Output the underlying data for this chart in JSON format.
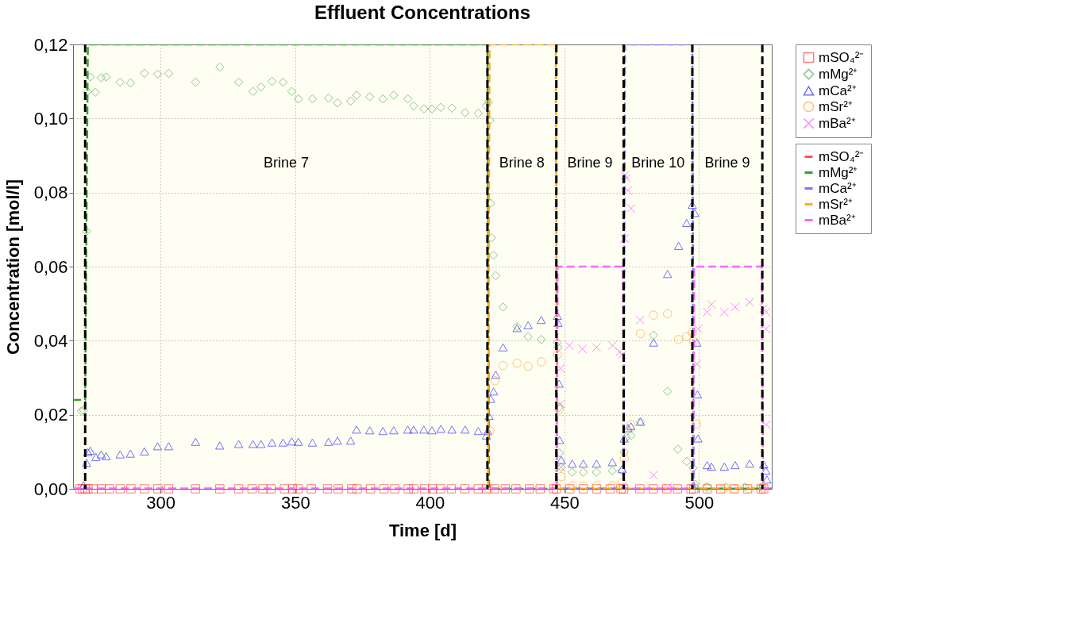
{
  "chart_data": {
    "type": "scatter",
    "title": "Effluent Concentrations",
    "xlabel": "Time [d]",
    "ylabel": "Concentration [mol/l]",
    "xlim": [
      267.5,
      527
    ],
    "xticks": [
      300,
      350,
      400,
      450,
      500
    ],
    "ylim": [
      0,
      0.12
    ],
    "yticks": [
      {
        "value": 0,
        "label": "0,00"
      },
      {
        "value": 0.02,
        "label": "0,02"
      },
      {
        "value": 0.04,
        "label": "0,04"
      },
      {
        "value": 0.06,
        "label": "0,06"
      },
      {
        "value": 0.08,
        "label": "0,08"
      },
      {
        "value": 0.1,
        "label": "0,10"
      },
      {
        "value": 0.12,
        "label": "0,12"
      }
    ],
    "grid": true,
    "legend": "right",
    "series": [
      {
        "name": "mSO₄²⁻",
        "marker": "square",
        "color": "#ff4444",
        "x": [
          270,
          271,
          272,
          273,
          275,
          278,
          281,
          285,
          289,
          294,
          299,
          303,
          313,
          322,
          329,
          334,
          338,
          341,
          346,
          349,
          351,
          356,
          362,
          366,
          371,
          373,
          378,
          383,
          387,
          392,
          394,
          398,
          401,
          404,
          408,
          413,
          418,
          421,
          424,
          428,
          432,
          437,
          441,
          446,
          447,
          452,
          457,
          462,
          467,
          471,
          472,
          478,
          483,
          488,
          492,
          497,
          498,
          503,
          508,
          513,
          518,
          523,
          524
        ],
        "values": [
          0,
          0,
          0,
          0,
          0,
          0,
          0,
          0,
          0,
          0,
          0,
          0,
          0,
          0,
          0,
          0,
          0,
          0,
          0,
          0,
          0,
          0,
          0,
          0,
          0,
          0,
          0,
          0,
          0,
          0,
          0,
          0,
          0,
          0,
          0,
          0,
          0,
          0,
          0,
          0,
          0,
          0,
          0,
          0,
          0,
          0,
          0,
          0,
          0,
          0,
          0,
          0,
          0,
          0,
          0,
          0,
          0,
          0,
          0,
          0,
          0,
          0,
          0
        ]
      },
      {
        "name": "mMg²⁺",
        "marker": "diamond",
        "color": "#5aaa5a",
        "x": [
          270.6,
          271.4,
          272.5,
          272.8,
          273.9,
          275.8,
          278,
          279.8,
          285,
          288.8,
          294,
          298.9,
          303,
          313,
          322,
          329,
          334.3,
          337.3,
          341.4,
          345.5,
          348.7,
          351.2,
          356.4,
          362.4,
          365.7,
          370.6,
          372.8,
          377.7,
          382.6,
          386.6,
          391.8,
          394,
          397.8,
          400.8,
          404.1,
          408.2,
          413.1,
          418,
          421,
          421.8,
          422.3,
          422.6,
          422.9,
          423.7,
          424.5,
          427.2,
          432.4,
          436.5,
          441.4,
          447.4,
          447.6,
          448,
          448.2,
          448.8,
          452.9,
          457,
          461.9,
          467.8,
          471.4,
          472.2,
          473,
          474.7,
          478.2,
          483.1,
          488.3,
          492.1,
          495.4,
          497.8,
          498.6,
          503,
          510,
          517,
          523
        ],
        "values": [
          0.021,
          0.0212,
          0.0695,
          0.1073,
          0.1112,
          0.1071,
          0.111,
          0.1112,
          0.1098,
          0.1096,
          0.1122,
          0.112,
          0.1122,
          0.1098,
          0.1139,
          0.1098,
          0.1073,
          0.1085,
          0.11,
          0.1098,
          0.1073,
          0.1053,
          0.1053,
          0.1055,
          0.1042,
          0.1047,
          0.1063,
          0.1059,
          0.1053,
          0.1063,
          0.1053,
          0.1034,
          0.1026,
          0.1026,
          0.103,
          0.1028,
          0.1016,
          0.1014,
          0.1034,
          0.1045,
          0.0995,
          0.0771,
          0.0678,
          0.0631,
          0.0576,
          0.0491,
          0.0438,
          0.0411,
          0.0403,
          0.0395,
          0.0382,
          0.022,
          0.0097,
          0.0058,
          0.0045,
          0.0045,
          0.0045,
          0.0049,
          0.0049,
          0.0099,
          0.014,
          0.0144,
          0.0181,
          0.0415,
          0.0263,
          0.0107,
          0.0074,
          0.0056,
          0.0012,
          0.0005,
          0.0005,
          0.0005,
          0.0005
        ]
      },
      {
        "name": "mCa²⁺",
        "marker": "triangle",
        "color": "#3333ff",
        "x": [
          271.4,
          272.5,
          273,
          273.9,
          276,
          278,
          279.8,
          285,
          288.8,
          294,
          298.9,
          303,
          313,
          322,
          329,
          334.3,
          337.3,
          341.4,
          345.5,
          348.7,
          351.2,
          356.4,
          362.4,
          365.7,
          370.6,
          372.8,
          377.7,
          382.6,
          386.6,
          391.8,
          394,
          397.8,
          400.8,
          404.1,
          408.2,
          413.1,
          418,
          421,
          421.5,
          422,
          422.6,
          423.7,
          424.5,
          427.2,
          432.4,
          436.5,
          441.4,
          447.4,
          447.6,
          448,
          448.2,
          448.8,
          452.9,
          457,
          461.9,
          467.8,
          471.4,
          472.2,
          473.6,
          474.7,
          478.2,
          483.1,
          488.3,
          492.4,
          495.4,
          497.5,
          498.4,
          499.2,
          499.4,
          499.6,
          503,
          504.6,
          509.4,
          513.4,
          518.8,
          524,
          524.8,
          525.2
        ],
        "values": [
          0.001,
          0.007,
          0.0099,
          0.0103,
          0.0086,
          0.0093,
          0.0088,
          0.0093,
          0.0095,
          0.0101,
          0.0115,
          0.0115,
          0.0127,
          0.0117,
          0.0121,
          0.0121,
          0.0121,
          0.0125,
          0.0125,
          0.0128,
          0.0127,
          0.0125,
          0.0127,
          0.013,
          0.013,
          0.016,
          0.0158,
          0.0156,
          0.0158,
          0.016,
          0.016,
          0.016,
          0.0158,
          0.0162,
          0.016,
          0.016,
          0.0156,
          0.0144,
          0.0156,
          0.0197,
          0.0243,
          0.0263,
          0.0308,
          0.0382,
          0.0434,
          0.0442,
          0.0456,
          0.0467,
          0.0448,
          0.0284,
          0.0132,
          0.0078,
          0.0068,
          0.0068,
          0.0068,
          0.0072,
          0.0053,
          0.0136,
          0.0164,
          0.0169,
          0.0181,
          0.0395,
          0.058,
          0.0656,
          0.0718,
          0.0767,
          0.0745,
          0.0395,
          0.0255,
          0.0136,
          0.0064,
          0.006,
          0.006,
          0.0064,
          0.0068,
          0.0066,
          0.0049,
          0.0025
        ]
      },
      {
        "name": "mSr²⁺",
        "marker": "circle",
        "color": "#ffaa33",
        "x": [
          422,
          422.3,
          424.2,
          427.2,
          432.4,
          436.5,
          441.4,
          447.4,
          448,
          448.8,
          452.9,
          457,
          461.9,
          467.8,
          471.4,
          472.2,
          474.7,
          478.2,
          483.1,
          488.3,
          492.4,
          495.4,
          497.5,
          498,
          499,
          503,
          509.4,
          513.4,
          518.8,
          524
        ],
        "values": [
          0,
          0.0156,
          0.0292,
          0.0333,
          0.0339,
          0.0331,
          0.0343,
          0.0362,
          0.0214,
          0.0033,
          0.0008,
          0.0008,
          0.0008,
          0.0008,
          0.0016,
          0.0082,
          0.0173,
          0.0419,
          0.0469,
          0.0473,
          0.0403,
          0.0411,
          0.0421,
          0.0399,
          0.0175,
          0.0004,
          0,
          0,
          0,
          0.0004
        ]
      },
      {
        "name": "mBa²⁺",
        "marker": "cross",
        "color": "#ff55ff",
        "x": [
          448.5,
          448.6,
          448.7,
          451.8,
          456.7,
          461.9,
          467.8,
          470.6,
          471.4,
          472.5,
          473,
          473.6,
          474.7,
          472.3,
          478.2,
          483.1,
          488.3,
          499.7,
          499.2,
          503,
          504.6,
          509.4,
          513.4,
          518.8,
          524,
          524.8,
          524.9,
          525
        ],
        "values": [
          0.0325,
          0.023,
          0.0058,
          0.0387,
          0.0378,
          0.0382,
          0.0387,
          0.037,
          0.0362,
          0.0847,
          0.0839,
          0.0806,
          0.0757,
          0.0676,
          0.0456,
          0.0037,
          0.0004,
          0.0432,
          0.0337,
          0.0477,
          0.0498,
          0.0477,
          0.0491,
          0.0504,
          0.0487,
          0.0477,
          0.0432,
          0.0173
        ]
      },
      {
        "name": "mSO₄²⁻",
        "type": "line",
        "line_style": "dashed",
        "color": "#ff5555",
        "x": [
          267.5,
          527
        ],
        "values": [
          0,
          0
        ]
      },
      {
        "name": "mMg²⁺",
        "type": "line",
        "line_style": "dashed",
        "color": "#33a033",
        "x": [
          267.5,
          272,
          273,
          421.4,
          422,
          527
        ],
        "values": [
          0.024,
          0.024,
          0.12,
          0.12,
          0,
          0
        ]
      },
      {
        "name": "mCa²⁺",
        "type": "line",
        "line_style": "dashed",
        "color": "#7777ff",
        "x": [
          267.5,
          472,
          472.5,
          497.5,
          498,
          527
        ],
        "values": [
          0,
          0,
          0.12,
          0.12,
          0,
          0
        ]
      },
      {
        "name": "mSr²⁺",
        "type": "line",
        "line_style": "dashed",
        "color": "#ffaa22",
        "x": [
          267.5,
          421.6,
          422.2,
          446.8,
          447.3,
          527
        ],
        "values": [
          0,
          0,
          0.12,
          0.12,
          0,
          0
        ]
      },
      {
        "name": "mBa²⁺",
        "type": "line",
        "line_style": "dashed",
        "color": "#ff66ff",
        "x": [
          267.5,
          447,
          447.5,
          471.7,
          472.2,
          497.7,
          498.2,
          523.3,
          523.8,
          527
        ],
        "values": [
          0,
          0,
          0.06,
          0.06,
          0,
          0,
          0.06,
          0.06,
          0,
          0
        ]
      }
    ],
    "ref_lines": [
      {
        "axis": "x",
        "value": 272,
        "color": "#000000",
        "line_style": "dashed"
      },
      {
        "axis": "x",
        "value": 421.4,
        "color": "#000000",
        "line_style": "dashed"
      },
      {
        "axis": "x",
        "value": 447,
        "color": "#000000",
        "line_style": "dashed"
      },
      {
        "axis": "x",
        "value": 472,
        "color": "#000000",
        "line_style": "dashed"
      },
      {
        "axis": "x",
        "value": 497.5,
        "color": "#000000",
        "line_style": "dashed"
      },
      {
        "axis": "x",
        "value": 523.5,
        "color": "#000000",
        "line_style": "dashed"
      }
    ],
    "annotations": [
      "Brine 7",
      "Brine 8",
      "Brine 9",
      "Brine 10",
      "Brine 9"
    ]
  }
}
